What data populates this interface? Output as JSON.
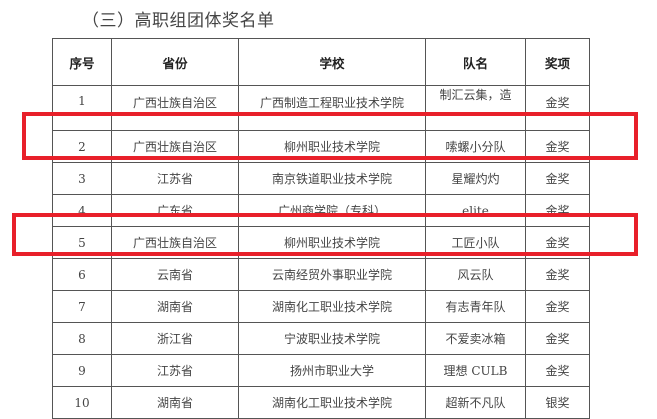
{
  "title": "（三）高职组团体奖名单",
  "headers": [
    "序号",
    "省份",
    "学校",
    "队名",
    "奖项"
  ],
  "rows": [
    {
      "no": "1",
      "province": "广西壮族自治区",
      "school": "广西制造工程职业技术学院",
      "team": "制汇云集，造",
      "award": "金奖"
    },
    {
      "no": "2",
      "province": "广西壮族自治区",
      "school": "柳州职业技术学院",
      "team": "嗦螺小分队",
      "award": "金奖"
    },
    {
      "no": "3",
      "province": "江苏省",
      "school": "南京铁道职业技术学院",
      "team": "星耀灼灼",
      "award": "金奖"
    },
    {
      "no": "4",
      "province": "广东省",
      "school": "广州商学院（专科）",
      "team": "elite",
      "award": "金奖"
    },
    {
      "no": "5",
      "province": "广西壮族自治区",
      "school": "柳州职业技术学院",
      "team": "工匠小队",
      "award": "金奖"
    },
    {
      "no": "6",
      "province": "云南省",
      "school": "云南经贸外事职业学院",
      "team": "风云队",
      "award": "金奖"
    },
    {
      "no": "7",
      "province": "湖南省",
      "school": "湖南化工职业技术学院",
      "team": "有志青年队",
      "award": "金奖"
    },
    {
      "no": "8",
      "province": "浙江省",
      "school": "宁波职业技术学院",
      "team": "不爱卖冰箱",
      "award": "金奖"
    },
    {
      "no": "9",
      "province": "江苏省",
      "school": "扬州市职业大学",
      "team": "理想 CULB",
      "award": "金奖"
    },
    {
      "no": "10",
      "province": "湖南省",
      "school": "湖南化工职业技术学院",
      "team": "超新不凡队",
      "award": "银奖"
    }
  ],
  "highlight_color": "#e8202a",
  "highlighted_rows": [
    "2",
    "5"
  ]
}
